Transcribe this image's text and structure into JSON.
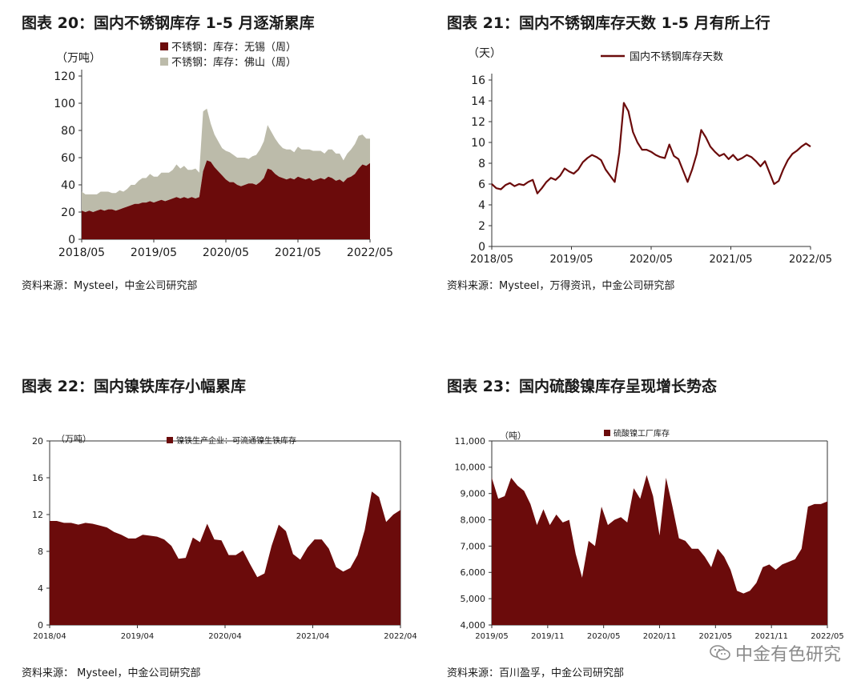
{
  "chart_data": [
    {
      "id": "c20",
      "type": "area",
      "title": "图表 20：国内不锈钢库存 1-5 月逐渐累库",
      "ylabel": "（万吨）",
      "ylim": [
        0,
        120
      ],
      "yticks": [
        0,
        20,
        40,
        60,
        80,
        100,
        120
      ],
      "xticks": [
        "2018/05",
        "2019/05",
        "2020/05",
        "2021/05",
        "2022/05"
      ],
      "legend_position": "top",
      "source": "资料来源：Mysteel，中金公司研究部",
      "stacked": true,
      "series": [
        {
          "name": "不锈钢：库存：无锡（周）",
          "color": "#6b0b0b",
          "values": [
            21,
            20,
            21,
            20,
            21,
            22,
            21,
            22,
            22,
            21,
            22,
            23,
            24,
            25,
            26,
            26,
            27,
            27,
            28,
            27,
            28,
            29,
            28,
            29,
            30,
            31,
            30,
            31,
            30,
            31,
            30,
            31,
            50,
            58,
            57,
            53,
            50,
            47,
            44,
            42,
            42,
            40,
            39,
            40,
            41,
            41,
            40,
            42,
            45,
            52,
            51,
            48,
            46,
            45,
            44,
            45,
            44,
            46,
            45,
            44,
            45,
            43,
            44,
            45,
            44,
            46,
            45,
            43,
            44,
            42,
            45,
            46,
            48,
            52,
            55,
            54,
            56
          ]
        },
        {
          "name": "不锈钢：库存：佛山（周）",
          "color": "#bcbbaa",
          "values": [
            14,
            13,
            12,
            13,
            12,
            13,
            14,
            13,
            12,
            13,
            14,
            12,
            13,
            15,
            14,
            17,
            18,
            18,
            20,
            19,
            18,
            20,
            21,
            20,
            21,
            24,
            22,
            23,
            21,
            20,
            22,
            18,
            44,
            38,
            28,
            24,
            22,
            20,
            21,
            22,
            20,
            20,
            21,
            20,
            18,
            20,
            22,
            24,
            27,
            32,
            28,
            26,
            24,
            22,
            22,
            21,
            20,
            22,
            21,
            22,
            21,
            22,
            21,
            20,
            19,
            20,
            21,
            20,
            19,
            16,
            18,
            20,
            22,
            24,
            22,
            20,
            18
          ]
        }
      ]
    },
    {
      "id": "c21",
      "type": "line",
      "title": "图表 21：国内不锈钢库存天数 1-5 月有所上行",
      "ylabel": "（天）",
      "ylim": [
        0,
        16
      ],
      "yticks": [
        0,
        2,
        4,
        6,
        8,
        10,
        12,
        14,
        16
      ],
      "xticks": [
        "2018/05",
        "2019/05",
        "2020/05",
        "2021/05",
        "2022/05"
      ],
      "legend_position": "top",
      "source": "资料来源：Mysteel，万得资讯，中金公司研究部",
      "series": [
        {
          "name": "国内不锈钢库存天数",
          "color": "#6b0b0b",
          "values": [
            6.0,
            5.6,
            5.5,
            5.9,
            6.1,
            5.8,
            6.0,
            5.9,
            6.2,
            6.4,
            5.1,
            5.6,
            6.2,
            6.6,
            6.4,
            6.8,
            7.5,
            7.2,
            7.0,
            7.4,
            8.1,
            8.5,
            8.8,
            8.6,
            8.3,
            7.4,
            6.8,
            6.2,
            9.0,
            13.8,
            13.0,
            11.0,
            10.0,
            9.3,
            9.3,
            9.1,
            8.8,
            8.6,
            8.5,
            9.8,
            8.7,
            8.4,
            7.3,
            6.2,
            7.4,
            8.9,
            11.2,
            10.5,
            9.6,
            9.1,
            8.7,
            8.9,
            8.4,
            8.8,
            8.3,
            8.5,
            8.8,
            8.6,
            8.2,
            7.7,
            8.2,
            7.1,
            6.0,
            6.3,
            7.4,
            8.3,
            8.9,
            9.2,
            9.6,
            9.9,
            9.6
          ]
        }
      ]
    },
    {
      "id": "c22",
      "type": "area",
      "title": "图表 22：国内镍铁库存小幅累库",
      "ylabel": "（万吨）",
      "ylim": [
        0,
        20
      ],
      "yticks": [
        0,
        4,
        8,
        12,
        16,
        20
      ],
      "xticks": [
        "2018/04",
        "2019/04",
        "2020/04",
        "2021/04",
        "2022/04"
      ],
      "legend_position": "top",
      "source": "资料来源：   Mysteel，中金公司研究部",
      "series": [
        {
          "name": "镍铁生产企业：可流通镍生铁库存",
          "color": "#6b0b0b",
          "values": [
            11.3,
            11.3,
            11.1,
            11.1,
            10.9,
            11.1,
            11.0,
            10.8,
            10.6,
            10.1,
            9.8,
            9.4,
            9.4,
            9.8,
            9.7,
            9.6,
            9.3,
            8.6,
            7.2,
            7.3,
            9.5,
            9.0,
            11.0,
            9.3,
            9.2,
            7.6,
            7.6,
            8.1,
            6.6,
            5.2,
            5.6,
            8.6,
            10.9,
            10.2,
            7.7,
            7.1,
            8.4,
            9.3,
            9.3,
            8.3,
            6.3,
            5.8,
            6.2,
            7.6,
            10.3,
            14.5,
            13.9,
            11.2,
            12.0,
            12.5
          ]
        }
      ]
    },
    {
      "id": "c23",
      "type": "area",
      "title": "图表 23：国内硫酸镍库存呈现增长势态",
      "ylabel": "（吨）",
      "ylim": [
        4000,
        11000
      ],
      "yticks": [
        4000,
        5000,
        6000,
        7000,
        8000,
        9000,
        10000,
        11000
      ],
      "ytick_labels": [
        "4,000",
        "5,000",
        "6,000",
        "7,000",
        "8,000",
        "9,000",
        "10,000",
        "11,000"
      ],
      "xticks": [
        "2019/05",
        "2019/11",
        "2020/05",
        "2020/11",
        "2021/05",
        "2021/11",
        "2022/05"
      ],
      "legend_position": "top",
      "source": "资料来源：百川盈孚，中金公司研究部",
      "series": [
        {
          "name": "硫酸镍工厂库存",
          "color": "#6b0b0b",
          "values": [
            9600,
            8800,
            8900,
            9600,
            9300,
            9100,
            8600,
            7800,
            8400,
            7800,
            8200,
            7900,
            8000,
            6700,
            5800,
            7200,
            7000,
            8500,
            7800,
            8000,
            8100,
            7900,
            9200,
            8800,
            9700,
            8900,
            7400,
            9600,
            8500,
            7300,
            7200,
            6900,
            6900,
            6600,
            6200,
            6900,
            6600,
            6100,
            5300,
            5200,
            5300,
            5600,
            6200,
            6300,
            6100,
            6300,
            6400,
            6500,
            6900,
            8500,
            8600,
            8600,
            8700
          ]
        }
      ]
    }
  ],
  "watermark": {
    "text": "中金有色研究",
    "icon": "wechat-icon"
  }
}
